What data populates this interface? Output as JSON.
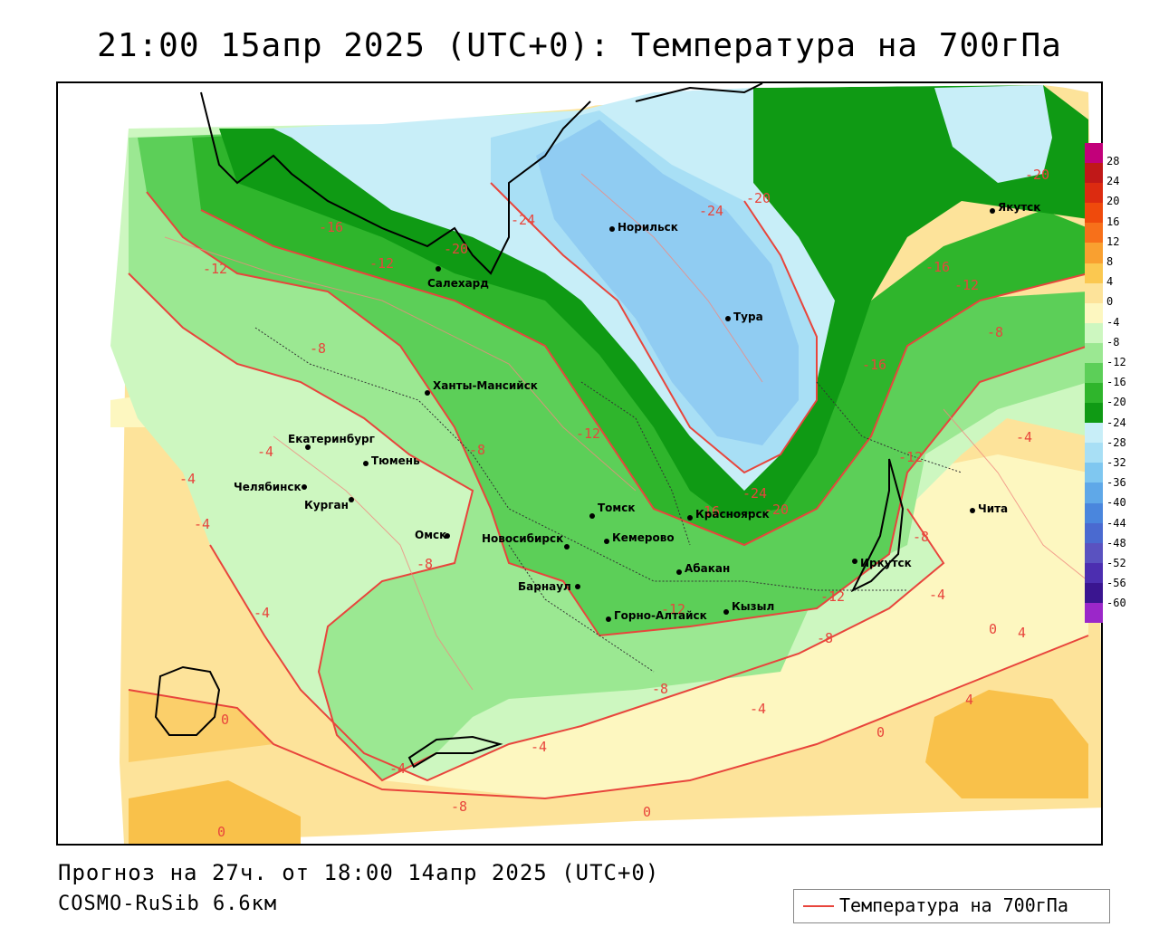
{
  "title": "21:00 15апр 2025 (UTC+0): Температура на 700гПа",
  "footer": {
    "forecast": "Прогноз на 27ч. от 18:00 14апр 2025 (UTC+0)",
    "model": "COSMO-RuSib 6.6км"
  },
  "legend": {
    "label": "Температура на 700гПа",
    "color": "#e8453c"
  },
  "colorbar": {
    "ticks": [
      "28",
      "24",
      "20",
      "16",
      "12",
      "8",
      "4",
      "0",
      "-4",
      "-8",
      "-12",
      "-16",
      "-20",
      "-24",
      "-28",
      "-32",
      "-36",
      "-40",
      "-44",
      "-48",
      "-52",
      "-56",
      "-60"
    ],
    "colors": [
      "#c2007a",
      "#c01818",
      "#dc2b10",
      "#ef4a0c",
      "#f7701a",
      "#f9a030",
      "#fbc850",
      "#fde39a",
      "#fdf7c0",
      "#cdf7c0",
      "#9be892",
      "#5ccf58",
      "#2fb52c",
      "#0f9a14",
      "#c8eef8",
      "#a8dff5",
      "#7fc7f0",
      "#5fa8e8",
      "#4a86dd",
      "#4a6ad0",
      "#5a52c0",
      "#4c2eb0",
      "#3a1590",
      "#9b27c9"
    ]
  },
  "cities": [
    {
      "name": "Норильск"
    },
    {
      "name": "Салехард"
    },
    {
      "name": "Тура"
    },
    {
      "name": "Якутск"
    },
    {
      "name": "Ханты-Мансийск"
    },
    {
      "name": "Екатеринбург"
    },
    {
      "name": "Тюмень"
    },
    {
      "name": "Челябинск"
    },
    {
      "name": "Курган"
    },
    {
      "name": "Омск"
    },
    {
      "name": "Томск"
    },
    {
      "name": "Красноярск"
    },
    {
      "name": "Новосибирск"
    },
    {
      "name": "Кемерово"
    },
    {
      "name": "Абакан"
    },
    {
      "name": "Барнаул"
    },
    {
      "name": "Горно-Алтайск"
    },
    {
      "name": "Кызыл"
    },
    {
      "name": "Иркутск"
    },
    {
      "name": "Чита"
    }
  ],
  "contour_labels": [
    "-16",
    "-12",
    "-12",
    "-20",
    "-24",
    "-24",
    "-20",
    "-20",
    "-16",
    "-12",
    "-8",
    "-8",
    "-8",
    "-12",
    "-16",
    "-12",
    "-8",
    "-4",
    "-4",
    "-4",
    "-4",
    "-4",
    "-12",
    "-16",
    "-24",
    "-20",
    "-8",
    "-12",
    "-8",
    "-4",
    "-4",
    "0",
    "4",
    "4",
    "-8",
    "-4",
    "0",
    "0",
    "-4",
    "-8",
    "0",
    "0",
    "4"
  ]
}
